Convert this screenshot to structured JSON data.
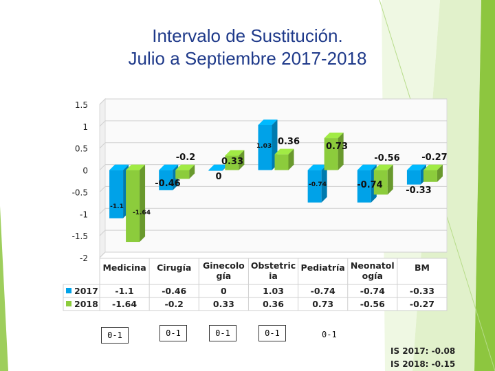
{
  "title": {
    "line1": "Intervalo de Sustitución.",
    "line2": "Julio a Septiembre 2017-2018"
  },
  "colors": {
    "series_2017": "#00a2e8",
    "series_2018": "#8ccc3c",
    "title": "#1f3a8a",
    "accent_green": "#8dc63f"
  },
  "chart_data": {
    "type": "bar",
    "categories": [
      "Medicina",
      "Cirugía",
      "Ginecolo gía",
      "Obstetric ia",
      "Pediatría",
      "Neonatol ogía",
      "BM"
    ],
    "category_lines": [
      [
        "Medicina"
      ],
      [
        "Cirugía"
      ],
      [
        "Ginecolo",
        "gía"
      ],
      [
        "Obstetric",
        "ia"
      ],
      [
        "Pediatría"
      ],
      [
        "Neonatol",
        "ogía"
      ],
      [
        "BM"
      ]
    ],
    "series": [
      {
        "name": "2017",
        "values": [
          -1.1,
          -0.46,
          0,
          1.03,
          -0.74,
          -0.74,
          -0.33
        ]
      },
      {
        "name": "2018",
        "values": [
          -1.64,
          -0.2,
          0.33,
          0.36,
          0.73,
          -0.56,
          -0.27
        ]
      }
    ],
    "yticks": [
      "1.5",
      "1",
      "0.5",
      "0",
      "-0.5",
      "-1",
      "-1.5",
      "-2"
    ],
    "ylim": [
      -2,
      1.5
    ],
    "data_table": true,
    "grid": true
  },
  "overlays": {
    "boxes": [
      "0-1",
      "0-1",
      "0-1",
      "0-1"
    ],
    "text": "0-1"
  },
  "summary": {
    "line1": "IS 2017: -0.08",
    "line2": "IS 2018: -0.15"
  }
}
